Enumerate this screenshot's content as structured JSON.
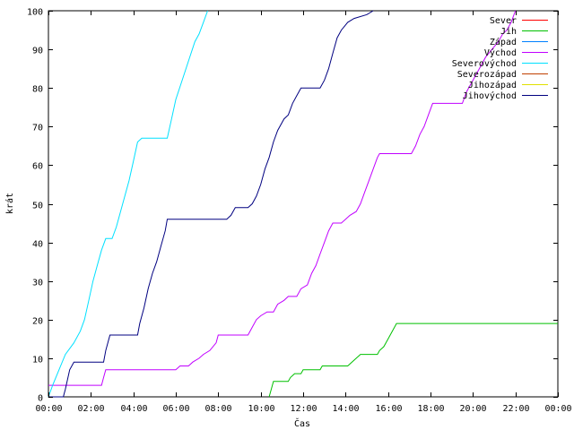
{
  "chart_data": {
    "type": "line",
    "xlabel": "Čas",
    "ylabel": "krát",
    "xlim": [
      0,
      24
    ],
    "ylim": [
      0,
      100
    ],
    "x_ticks": [
      {
        "value": 0,
        "label": "00:00"
      },
      {
        "value": 2,
        "label": "02:00"
      },
      {
        "value": 4,
        "label": "04:00"
      },
      {
        "value": 6,
        "label": "06:00"
      },
      {
        "value": 8,
        "label": "08:00"
      },
      {
        "value": 10,
        "label": "10:00"
      },
      {
        "value": 12,
        "label": "12:00"
      },
      {
        "value": 14,
        "label": "14:00"
      },
      {
        "value": 16,
        "label": "16:00"
      },
      {
        "value": 18,
        "label": "18:00"
      },
      {
        "value": 20,
        "label": "20:00"
      },
      {
        "value": 22,
        "label": "22:00"
      },
      {
        "value": 24,
        "label": "00:00"
      }
    ],
    "y_ticks": [
      0,
      10,
      20,
      30,
      40,
      50,
      60,
      70,
      80,
      90,
      100
    ],
    "grid": false,
    "legend_position": "top-right",
    "series": [
      {
        "name": "Sever",
        "color": "#ff0000",
        "points": []
      },
      {
        "name": "Jih",
        "color": "#00c000",
        "points": [
          [
            10.4,
            0
          ],
          [
            10.5,
            2
          ],
          [
            10.6,
            4
          ],
          [
            11.3,
            4
          ],
          [
            11.4,
            5
          ],
          [
            11.6,
            6
          ],
          [
            11.9,
            6
          ],
          [
            12.0,
            7
          ],
          [
            12.8,
            7
          ],
          [
            12.9,
            8
          ],
          [
            14.1,
            8
          ],
          [
            14.3,
            9
          ],
          [
            14.5,
            10
          ],
          [
            14.7,
            11
          ],
          [
            15.5,
            11
          ],
          [
            15.6,
            12
          ],
          [
            15.8,
            13
          ],
          [
            16.0,
            15
          ],
          [
            16.2,
            17
          ],
          [
            16.3,
            18
          ],
          [
            16.4,
            19
          ],
          [
            24,
            19
          ]
        ]
      },
      {
        "name": "Západ",
        "color": "#0080ff",
        "points": []
      },
      {
        "name": "Východ",
        "color": "#c000ff",
        "points": [
          [
            0,
            3
          ],
          [
            2.5,
            3
          ],
          [
            2.6,
            5
          ],
          [
            2.7,
            7
          ],
          [
            6.0,
            7
          ],
          [
            6.2,
            8
          ],
          [
            6.6,
            8
          ],
          [
            6.8,
            9
          ],
          [
            7.1,
            10
          ],
          [
            7.3,
            11
          ],
          [
            7.6,
            12
          ],
          [
            7.9,
            14
          ],
          [
            8.0,
            16
          ],
          [
            9.4,
            16
          ],
          [
            9.6,
            18
          ],
          [
            9.8,
            20
          ],
          [
            10.0,
            21
          ],
          [
            10.3,
            22
          ],
          [
            10.6,
            22
          ],
          [
            10.8,
            24
          ],
          [
            11.1,
            25
          ],
          [
            11.3,
            26
          ],
          [
            11.7,
            26
          ],
          [
            11.9,
            28
          ],
          [
            12.2,
            29
          ],
          [
            12.4,
            32
          ],
          [
            12.6,
            34
          ],
          [
            12.8,
            37
          ],
          [
            13.0,
            40
          ],
          [
            13.2,
            43
          ],
          [
            13.4,
            45
          ],
          [
            13.8,
            45
          ],
          [
            14.0,
            46
          ],
          [
            14.2,
            47
          ],
          [
            14.5,
            48
          ],
          [
            14.7,
            50
          ],
          [
            14.9,
            53
          ],
          [
            15.1,
            56
          ],
          [
            15.3,
            59
          ],
          [
            15.5,
            62
          ],
          [
            15.6,
            63
          ],
          [
            17.1,
            63
          ],
          [
            17.3,
            65
          ],
          [
            17.5,
            68
          ],
          [
            17.7,
            70
          ],
          [
            17.9,
            73
          ],
          [
            18.1,
            76
          ],
          [
            19.5,
            76
          ],
          [
            19.7,
            79
          ],
          [
            20.0,
            82
          ],
          [
            20.3,
            85
          ],
          [
            20.6,
            88
          ],
          [
            20.9,
            90
          ],
          [
            21.2,
            92
          ],
          [
            21.4,
            94
          ],
          [
            21.6,
            95
          ],
          [
            21.8,
            97
          ],
          [
            22.0,
            100
          ]
        ]
      },
      {
        "name": "Severovýchod",
        "color": "#00e0ff",
        "points": [
          [
            0,
            0
          ],
          [
            0.2,
            3
          ],
          [
            0.5,
            7
          ],
          [
            0.8,
            11
          ],
          [
            1.2,
            14
          ],
          [
            1.5,
            17
          ],
          [
            1.7,
            20
          ],
          [
            1.9,
            25
          ],
          [
            2.1,
            30
          ],
          [
            2.3,
            34
          ],
          [
            2.5,
            38
          ],
          [
            2.7,
            41
          ],
          [
            3.0,
            41
          ],
          [
            3.2,
            44
          ],
          [
            3.5,
            50
          ],
          [
            3.8,
            56
          ],
          [
            4.0,
            61
          ],
          [
            4.2,
            66
          ],
          [
            4.4,
            67
          ],
          [
            5.6,
            67
          ],
          [
            5.8,
            72
          ],
          [
            6.0,
            77
          ],
          [
            6.3,
            82
          ],
          [
            6.6,
            87
          ],
          [
            6.9,
            92
          ],
          [
            7.1,
            94
          ],
          [
            7.3,
            97
          ],
          [
            7.5,
            100
          ]
        ]
      },
      {
        "name": "Severozápad",
        "color": "#c04000",
        "points": []
      },
      {
        "name": "Jihozápad",
        "color": "#e0e000",
        "points": []
      },
      {
        "name": "Jihovýchod",
        "color": "#000080",
        "points": [
          [
            0,
            0
          ],
          [
            0.7,
            0
          ],
          [
            0.8,
            2
          ],
          [
            1.0,
            7
          ],
          [
            1.2,
            9
          ],
          [
            2.6,
            9
          ],
          [
            2.7,
            12
          ],
          [
            2.9,
            16
          ],
          [
            4.2,
            16
          ],
          [
            4.3,
            19
          ],
          [
            4.5,
            23
          ],
          [
            4.7,
            28
          ],
          [
            4.9,
            32
          ],
          [
            5.1,
            35
          ],
          [
            5.3,
            39
          ],
          [
            5.5,
            43
          ],
          [
            5.6,
            46
          ],
          [
            8.4,
            46
          ],
          [
            8.6,
            47
          ],
          [
            8.8,
            49
          ],
          [
            9.4,
            49
          ],
          [
            9.6,
            50
          ],
          [
            9.8,
            52
          ],
          [
            10.0,
            55
          ],
          [
            10.2,
            59
          ],
          [
            10.4,
            62
          ],
          [
            10.6,
            66
          ],
          [
            10.8,
            69
          ],
          [
            11.1,
            72
          ],
          [
            11.3,
            73
          ],
          [
            11.5,
            76
          ],
          [
            11.7,
            78
          ],
          [
            11.9,
            80
          ],
          [
            12.8,
            80
          ],
          [
            13.0,
            82
          ],
          [
            13.2,
            85
          ],
          [
            13.4,
            89
          ],
          [
            13.6,
            93
          ],
          [
            13.8,
            95
          ],
          [
            14.1,
            97
          ],
          [
            14.4,
            98
          ],
          [
            15.0,
            99
          ],
          [
            15.3,
            100
          ]
        ]
      }
    ]
  }
}
